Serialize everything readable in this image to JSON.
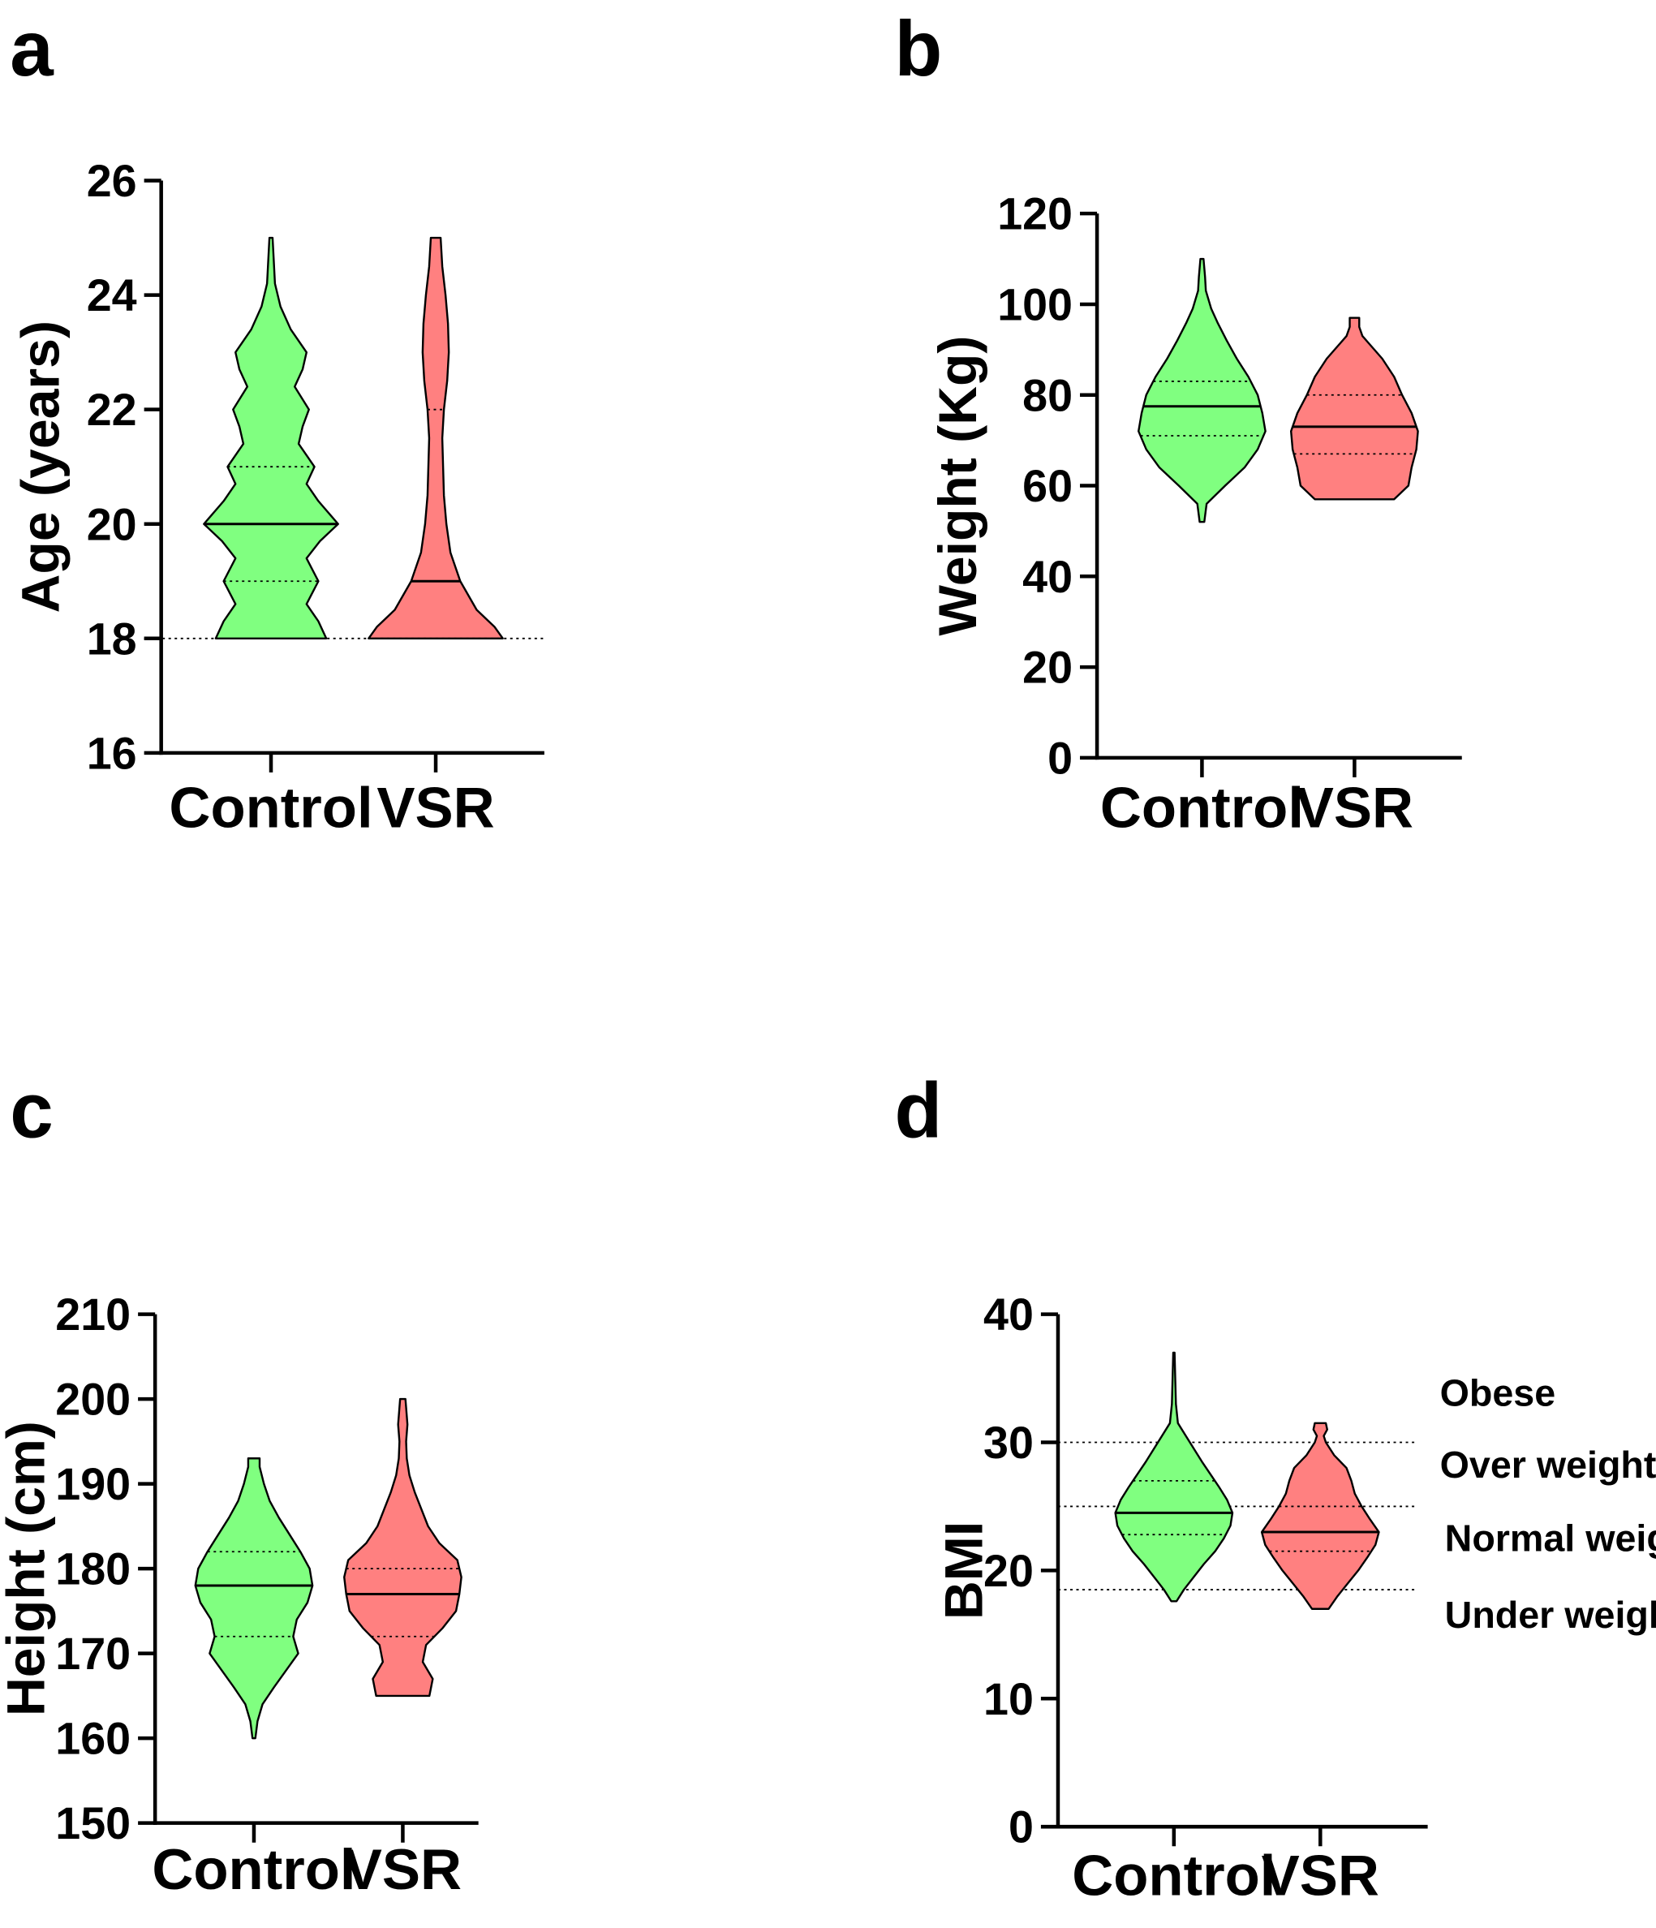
{
  "colors": {
    "control": "#80ff80",
    "vsr": "#ff8080",
    "axis": "#000000"
  },
  "chart_data": [
    {
      "type": "violin",
      "panel_label": "a",
      "ylabel": "Age (years)",
      "ylim": [
        16,
        26
      ],
      "yticks": [
        "16",
        "18",
        "20",
        "22",
        "24",
        "26"
      ],
      "categories": [
        "Control",
        "VSR"
      ],
      "reference_lines": [
        18
      ],
      "series": [
        {
          "name": "Control",
          "min": 18,
          "max": 25,
          "q1": 19,
          "median": 20,
          "q3": 21,
          "density_profile": [
            [
              18,
              0.7
            ],
            [
              18.3,
              0.6
            ],
            [
              18.6,
              0.45
            ],
            [
              19,
              0.6
            ],
            [
              19.4,
              0.45
            ],
            [
              19.7,
              0.62
            ],
            [
              20,
              0.85
            ],
            [
              20.4,
              0.6
            ],
            [
              20.7,
              0.45
            ],
            [
              21,
              0.55
            ],
            [
              21.4,
              0.35
            ],
            [
              21.7,
              0.4
            ],
            [
              22,
              0.48
            ],
            [
              22.4,
              0.3
            ],
            [
              22.7,
              0.4
            ],
            [
              23,
              0.45
            ],
            [
              23.4,
              0.25
            ],
            [
              23.8,
              0.12
            ],
            [
              24.2,
              0.05
            ],
            [
              25,
              0.02
            ]
          ]
        },
        {
          "name": "VSR",
          "min": 18,
          "max": 25,
          "q1": 18,
          "median": 19,
          "q3": 22,
          "density_profile": [
            [
              18,
              0.82
            ],
            [
              18.2,
              0.72
            ],
            [
              18.5,
              0.5
            ],
            [
              19,
              0.3
            ],
            [
              19.5,
              0.18
            ],
            [
              20,
              0.13
            ],
            [
              20.5,
              0.1
            ],
            [
              21,
              0.09
            ],
            [
              21.5,
              0.08
            ],
            [
              22,
              0.1
            ],
            [
              22.5,
              0.14
            ],
            [
              23,
              0.16
            ],
            [
              23.5,
              0.15
            ],
            [
              24,
              0.12
            ],
            [
              24.5,
              0.08
            ],
            [
              25,
              0.06
            ]
          ]
        }
      ]
    },
    {
      "type": "violin",
      "panel_label": "b",
      "ylabel": "Weight (Kg)",
      "ylim": [
        0,
        120
      ],
      "yticks": [
        "0",
        "20",
        "40",
        "60",
        "80",
        "100",
        "120"
      ],
      "categories": [
        "Control",
        "VSR"
      ],
      "reference_lines": [],
      "series": [
        {
          "name": "Control",
          "min": 52,
          "max": 110,
          "q1": 71,
          "median": 77.5,
          "q3": 83,
          "density_profile": [
            [
              52,
              0.03
            ],
            [
              56,
              0.06
            ],
            [
              60,
              0.3
            ],
            [
              64,
              0.55
            ],
            [
              68,
              0.72
            ],
            [
              72,
              0.82
            ],
            [
              76,
              0.78
            ],
            [
              80,
              0.72
            ],
            [
              84,
              0.6
            ],
            [
              88,
              0.45
            ],
            [
              92,
              0.32
            ],
            [
              96,
              0.2
            ],
            [
              99,
              0.12
            ],
            [
              103,
              0.05
            ],
            [
              106,
              0.04
            ],
            [
              110,
              0.02
            ]
          ]
        },
        {
          "name": "VSR",
          "min": 57,
          "max": 97,
          "q1": 67,
          "median": 73,
          "q3": 80,
          "density_profile": [
            [
              57,
              0.5
            ],
            [
              60,
              0.68
            ],
            [
              64,
              0.72
            ],
            [
              68,
              0.78
            ],
            [
              72,
              0.8
            ],
            [
              76,
              0.72
            ],
            [
              80,
              0.6
            ],
            [
              84,
              0.5
            ],
            [
              88,
              0.35
            ],
            [
              91,
              0.2
            ],
            [
              93,
              0.1
            ],
            [
              95,
              0.06
            ],
            [
              97,
              0.06
            ]
          ]
        }
      ]
    },
    {
      "type": "violin",
      "panel_label": "c",
      "ylabel": "Height (cm)",
      "ylim": [
        150,
        210
      ],
      "yticks": [
        "150",
        "160",
        "170",
        "180",
        "190",
        "200",
        "210"
      ],
      "categories": [
        "Control",
        "VSR"
      ],
      "reference_lines": [],
      "series": [
        {
          "name": "Control",
          "min": 160,
          "max": 193,
          "q1": 172,
          "median": 178,
          "q3": 182,
          "density_profile": [
            [
              160,
              0.02
            ],
            [
              162,
              0.05
            ],
            [
              164,
              0.12
            ],
            [
              166,
              0.28
            ],
            [
              168,
              0.45
            ],
            [
              170,
              0.62
            ],
            [
              172,
              0.55
            ],
            [
              174,
              0.6
            ],
            [
              176,
              0.75
            ],
            [
              178,
              0.82
            ],
            [
              180,
              0.78
            ],
            [
              182,
              0.65
            ],
            [
              184,
              0.5
            ],
            [
              186,
              0.35
            ],
            [
              188,
              0.22
            ],
            [
              190,
              0.14
            ],
            [
              192,
              0.08
            ],
            [
              193,
              0.08
            ]
          ]
        },
        {
          "name": "VSR",
          "min": 165,
          "max": 200,
          "q1": 172,
          "median": 177,
          "q3": 180,
          "density_profile": [
            [
              165,
              0.4
            ],
            [
              167,
              0.45
            ],
            [
              169,
              0.3
            ],
            [
              171,
              0.35
            ],
            [
              173,
              0.6
            ],
            [
              175,
              0.8
            ],
            [
              177,
              0.85
            ],
            [
              179,
              0.88
            ],
            [
              181,
              0.82
            ],
            [
              183,
              0.55
            ],
            [
              185,
              0.38
            ],
            [
              187,
              0.28
            ],
            [
              189,
              0.18
            ],
            [
              191,
              0.1
            ],
            [
              193,
              0.06
            ],
            [
              195,
              0.05
            ],
            [
              197,
              0.07
            ],
            [
              199,
              0.05
            ],
            [
              200,
              0.04
            ]
          ]
        }
      ]
    },
    {
      "type": "violin",
      "panel_label": "d",
      "ylabel": "BMI",
      "ylim": [
        0,
        40
      ],
      "yticks": [
        "0",
        "10",
        "20",
        "30",
        "40"
      ],
      "categories": [
        "Control",
        "VSR"
      ],
      "reference_lines": [
        18.5,
        25,
        30
      ],
      "annotations": [
        "Obese",
        "Over weight",
        "Normal weight",
        "Under weight"
      ],
      "series": [
        {
          "name": "Control",
          "min": 17.6,
          "max": 37,
          "q1": 22.8,
          "median": 24.5,
          "q3": 27,
          "density_profile": [
            [
              17.6,
              0.04
            ],
            [
              18.5,
              0.15
            ],
            [
              19.5,
              0.3
            ],
            [
              20.5,
              0.45
            ],
            [
              21.5,
              0.62
            ],
            [
              22.5,
              0.75
            ],
            [
              23.5,
              0.85
            ],
            [
              24.5,
              0.88
            ],
            [
              25.5,
              0.8
            ],
            [
              26.5,
              0.68
            ],
            [
              27.5,
              0.55
            ],
            [
              28.5,
              0.42
            ],
            [
              29.5,
              0.3
            ],
            [
              30.5,
              0.18
            ],
            [
              31.5,
              0.06
            ],
            [
              33,
              0.03
            ],
            [
              35,
              0.02
            ],
            [
              37,
              0.01
            ]
          ]
        },
        {
          "name": "VSR",
          "min": 17,
          "max": 31.5,
          "q1": 21.5,
          "median": 23,
          "q3": 25,
          "density_profile": [
            [
              17,
              0.12
            ],
            [
              18,
              0.25
            ],
            [
              19,
              0.4
            ],
            [
              20,
              0.55
            ],
            [
              21,
              0.68
            ],
            [
              22,
              0.8
            ],
            [
              23,
              0.85
            ],
            [
              24,
              0.72
            ],
            [
              25,
              0.6
            ],
            [
              26,
              0.5
            ],
            [
              27,
              0.45
            ],
            [
              28,
              0.38
            ],
            [
              29,
              0.2
            ],
            [
              30,
              0.08
            ],
            [
              30.5,
              0.05
            ],
            [
              31,
              0.1
            ],
            [
              31.5,
              0.08
            ]
          ]
        }
      ]
    }
  ]
}
